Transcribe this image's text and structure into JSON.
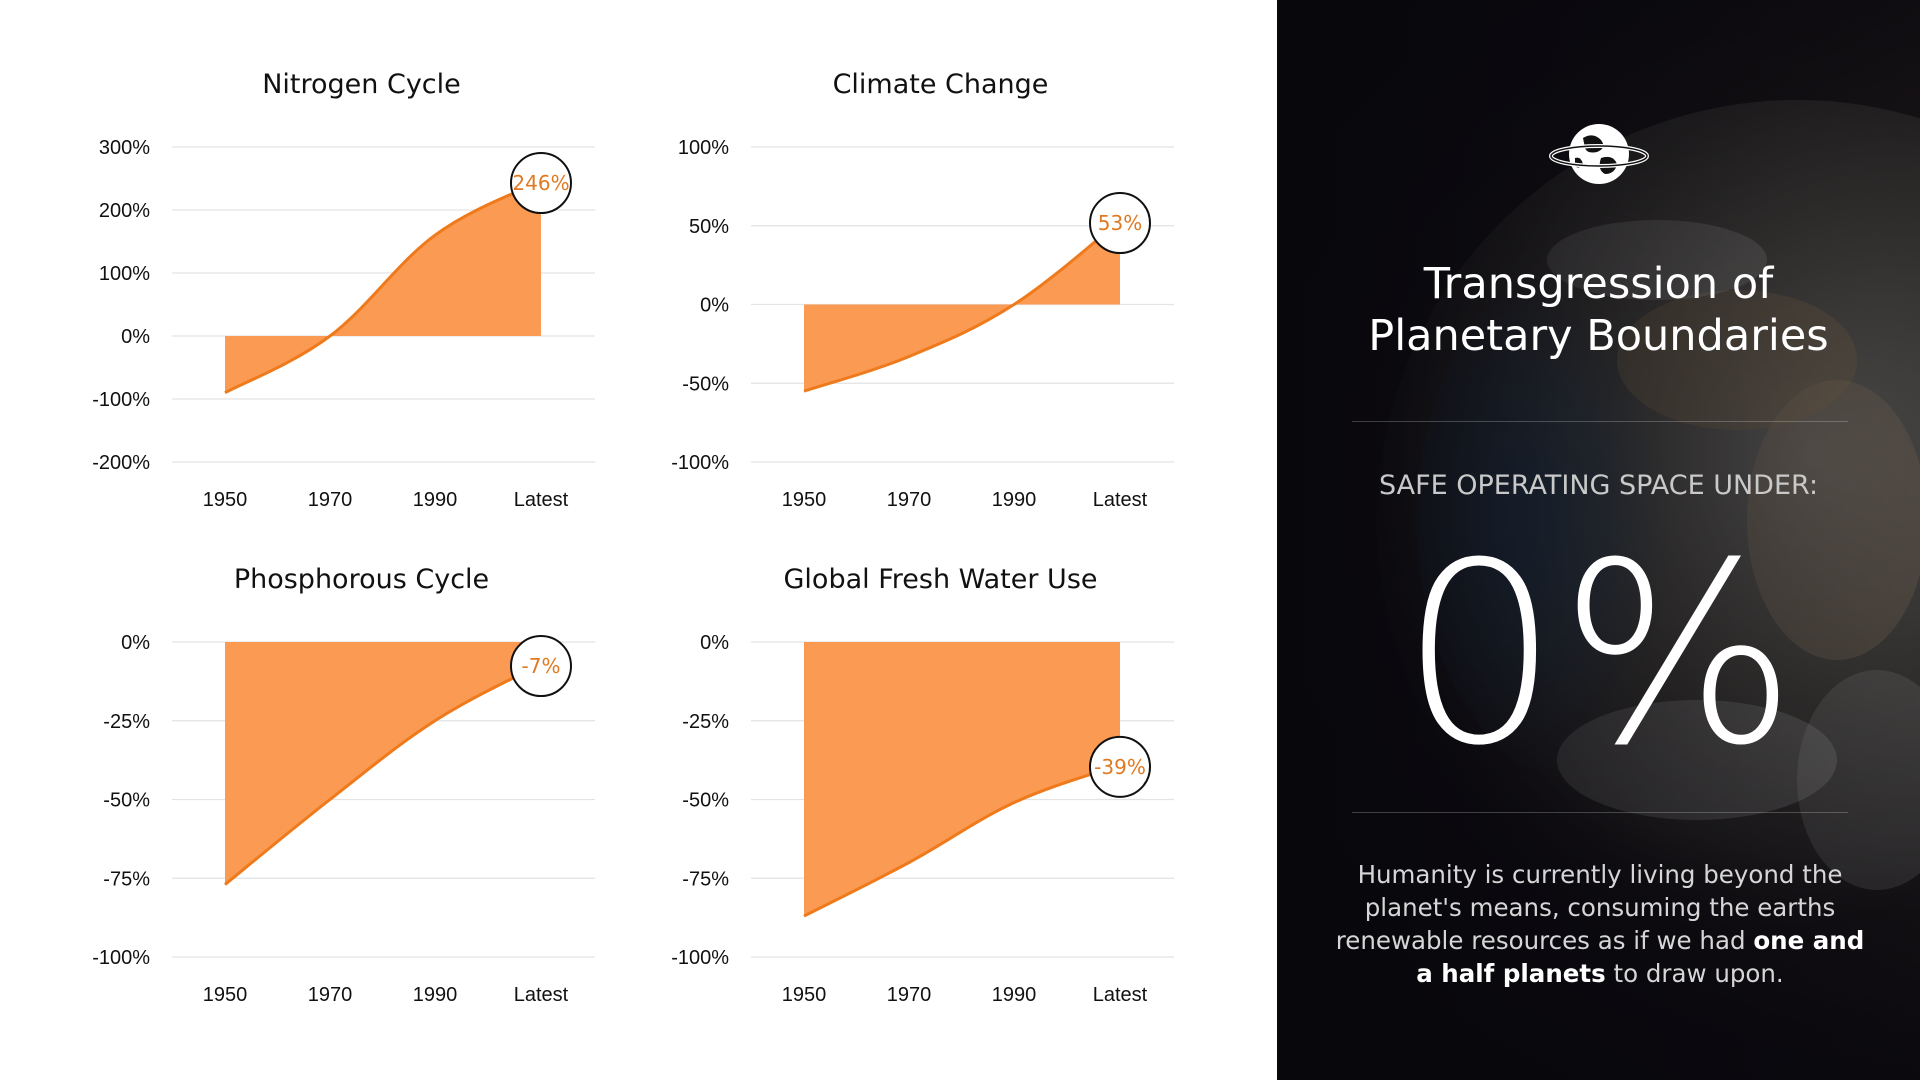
{
  "chart_data": [
    {
      "type": "area",
      "title": "Nitrogen Cycle",
      "x": [
        "1950",
        "1970",
        "1990",
        "Latest"
      ],
      "series": [
        {
          "values": [
            -90,
            0,
            160,
            246
          ]
        }
      ],
      "yticks": [
        "300%",
        "200%",
        "100%",
        "0%",
        "-100%",
        "-200%"
      ],
      "ylim": [
        -200,
        300
      ],
      "grid": true,
      "callout": "246%"
    },
    {
      "type": "area",
      "title": "Climate Change",
      "x": [
        "1950",
        "1970",
        "1990",
        "Latest"
      ],
      "series": [
        {
          "values": [
            -55,
            -33,
            0,
            53
          ]
        }
      ],
      "yticks": [
        "100%",
        "50%",
        "0%",
        "-50%",
        "-100%"
      ],
      "ylim": [
        -100,
        100
      ],
      "grid": true,
      "callout": "53%"
    },
    {
      "type": "area",
      "title": "Phosphorous Cycle",
      "x": [
        "1950",
        "1970",
        "1990",
        "Latest"
      ],
      "series": [
        {
          "values": [
            -77,
            -50,
            -25,
            -7
          ]
        }
      ],
      "yticks": [
        "0%",
        "-25%",
        "-50%",
        "-75%",
        "-100%"
      ],
      "ylim": [
        -100,
        0
      ],
      "grid": true,
      "callout": "-7%"
    },
    {
      "type": "area",
      "title": "Global Fresh Water Use",
      "x": [
        "1950",
        "1970",
        "1990",
        "Latest"
      ],
      "series": [
        {
          "values": [
            -87,
            -70,
            -51,
            -39
          ]
        }
      ],
      "yticks": [
        "0%",
        "-25%",
        "-50%",
        "-75%",
        "-100%"
      ],
      "ylim": [
        -100,
        0
      ],
      "grid": true,
      "callout": "-39%"
    }
  ],
  "panel": {
    "logo_icon": "planet-earth-icon",
    "title_line1": "Transgression of",
    "title_line2": "Planetary Boundaries",
    "subtitle": "SAFE OPERATING SPACE UNDER:",
    "big_value": "0%",
    "desc_part1": "Humanity is currently living beyond the planet's means, consuming the earths renewable resources as if we had ",
    "desc_bold": "one and a half planets",
    "desc_part2": " to draw upon."
  },
  "colors": {
    "area_fill": "#fb9a52",
    "area_line": "#ef7a1c",
    "callout_text": "#e07a22",
    "grid": "#e3e3e3",
    "panel_bg": "#0c0a0f"
  }
}
